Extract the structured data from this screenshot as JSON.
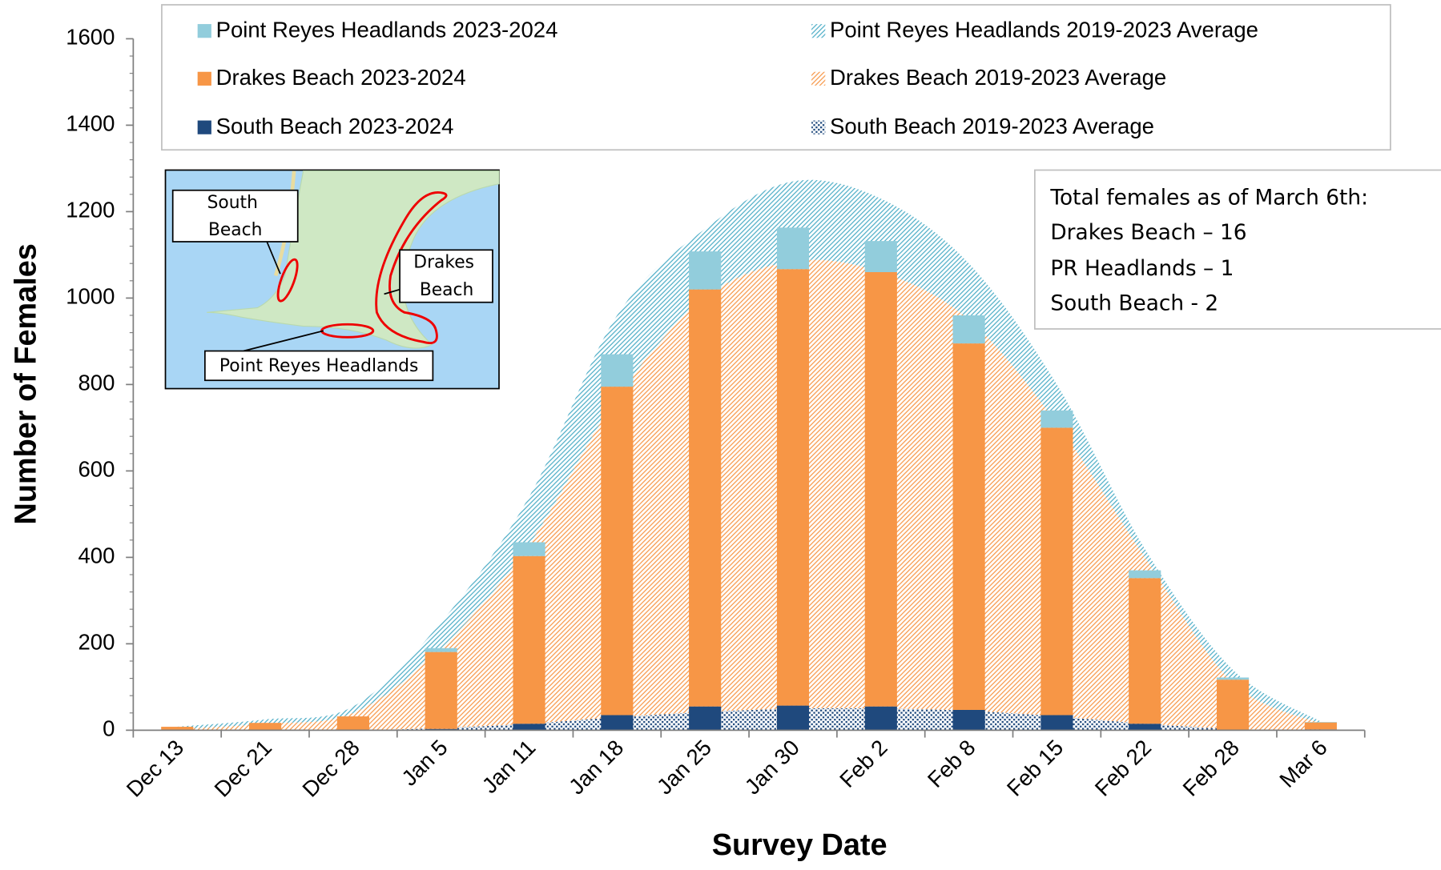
{
  "chart_data": {
    "type": "bar",
    "xlabel": "Survey Date",
    "ylabel": "Number of Females",
    "categories": [
      "Dec 13",
      "Dec 21",
      "Dec 28",
      "Jan 5",
      "Jan 11",
      "Jan 18",
      "Jan 25",
      "Jan 30",
      "Feb 2",
      "Feb 8",
      "Feb 15",
      "Feb 22",
      "Feb 28",
      "Mar 6"
    ],
    "ylim": [
      0,
      1600
    ],
    "yticks": [
      0,
      200,
      400,
      600,
      800,
      1000,
      1200,
      1400,
      1600
    ],
    "series": [
      {
        "name": "Point Reyes Headlands 2023-2024",
        "color": "#92cddc",
        "style": "solid",
        "values": [
          0,
          0,
          0,
          9,
          32,
          75,
          88,
          96,
          72,
          65,
          40,
          18,
          5,
          1
        ]
      },
      {
        "name": "Drakes Beach 2023-2024",
        "color": "#f79646",
        "style": "solid",
        "values": [
          8,
          17,
          32,
          178,
          388,
          760,
          965,
          1010,
          1005,
          848,
          665,
          337,
          117,
          16
        ]
      },
      {
        "name": "South Beach 2023-2024",
        "color": "#1f497d",
        "style": "solid",
        "values": [
          0,
          0,
          0,
          3,
          15,
          35,
          55,
          57,
          55,
          47,
          35,
          15,
          0,
          2
        ]
      },
      {
        "name": "Point Reyes Headlands 2019-2023 Average",
        "color": "#4bacc6",
        "style": "hatch",
        "values": [
          5,
          10,
          15,
          60,
          110,
          190,
          160,
          185,
          170,
          130,
          90,
          20,
          30,
          5
        ]
      },
      {
        "name": "Drakes Beach 2019-2023 Average",
        "color": "#f79646",
        "style": "hatch",
        "values": [
          3,
          15,
          40,
          185,
          415,
          740,
          958,
          1035,
          1010,
          905,
          678,
          385,
          107,
          15
        ]
      },
      {
        "name": "South Beach 2019-2023 Average",
        "color": "#1f497d",
        "style": "dots",
        "values": [
          0,
          0,
          0,
          5,
          15,
          30,
          42,
          50,
          50,
          45,
          32,
          15,
          3,
          0
        ]
      }
    ],
    "annotation": [
      "Total females as of March 6th:",
      "Drakes Beach – 16",
      "PR Headlands – 1",
      "South Beach - 2"
    ],
    "map_labels": [
      "South Beach",
      "Drakes Beach",
      "Point Reyes Headlands"
    ]
  }
}
